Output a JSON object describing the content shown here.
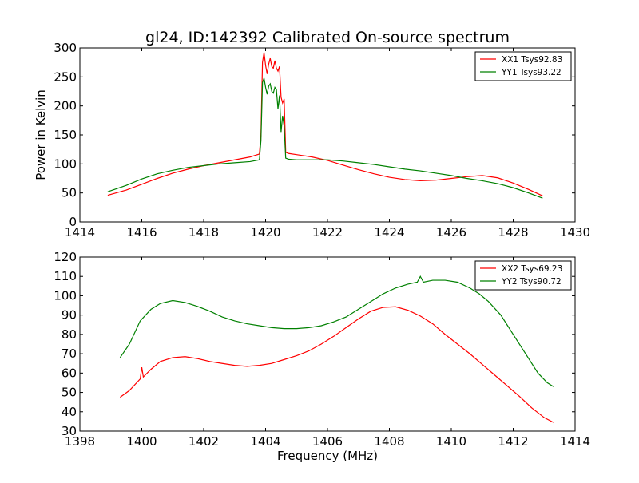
{
  "figure_title": "gl24, ID:142392 Calibrated On-source spectrum",
  "chart_data": [
    {
      "type": "line",
      "title": "gl24, ID:142392 Calibrated On-source spectrum",
      "xlabel": "",
      "ylabel": "Power in Kelvin",
      "xlim": [
        1414,
        1430
      ],
      "ylim": [
        0,
        300
      ],
      "xticks": [
        1414,
        1416,
        1418,
        1420,
        1422,
        1424,
        1426,
        1428,
        1430
      ],
      "yticks": [
        0,
        50,
        100,
        150,
        200,
        250,
        300
      ],
      "legend_position": "top-right",
      "series": [
        {
          "name": "XX1 Tsys92.83",
          "color": "#ff0000",
          "points": [
            [
              1414.9,
              46
            ],
            [
              1415.5,
              55
            ],
            [
              1416,
              65
            ],
            [
              1416.5,
              75
            ],
            [
              1417,
              84
            ],
            [
              1417.5,
              91
            ],
            [
              1418,
              97
            ],
            [
              1418.5,
              102
            ],
            [
              1419,
              107
            ],
            [
              1419.5,
              112
            ],
            [
              1419.8,
              117
            ],
            [
              1419.85,
              150
            ],
            [
              1419.9,
              275
            ],
            [
              1419.95,
              292
            ],
            [
              1420.0,
              270
            ],
            [
              1420.05,
              255
            ],
            [
              1420.1,
              272
            ],
            [
              1420.15,
              282
            ],
            [
              1420.2,
              268
            ],
            [
              1420.25,
              265
            ],
            [
              1420.3,
              278
            ],
            [
              1420.35,
              265
            ],
            [
              1420.4,
              260
            ],
            [
              1420.45,
              268
            ],
            [
              1420.5,
              215
            ],
            [
              1420.55,
              205
            ],
            [
              1420.6,
              212
            ],
            [
              1420.65,
              120
            ],
            [
              1420.75,
              118
            ],
            [
              1421,
              116
            ],
            [
              1421.5,
              112
            ],
            [
              1422,
              106
            ],
            [
              1422.5,
              98
            ],
            [
              1423,
              90
            ],
            [
              1423.5,
              83
            ],
            [
              1424,
              77
            ],
            [
              1424.5,
              73
            ],
            [
              1425,
              71
            ],
            [
              1425.5,
              72
            ],
            [
              1426,
              75
            ],
            [
              1426.5,
              78
            ],
            [
              1427,
              80
            ],
            [
              1427.5,
              76
            ],
            [
              1428,
              67
            ],
            [
              1428.5,
              56
            ],
            [
              1428.95,
              45
            ]
          ]
        },
        {
          "name": "YY1 Tsys93.22",
          "color": "#008000",
          "points": [
            [
              1414.9,
              52
            ],
            [
              1415.5,
              63
            ],
            [
              1416,
              74
            ],
            [
              1416.5,
              83
            ],
            [
              1417,
              89
            ],
            [
              1417.5,
              94
            ],
            [
              1418,
              97
            ],
            [
              1418.5,
              100
            ],
            [
              1419,
              102
            ],
            [
              1419.5,
              104
            ],
            [
              1419.8,
              107
            ],
            [
              1419.85,
              140
            ],
            [
              1419.9,
              240
            ],
            [
              1419.95,
              248
            ],
            [
              1420.0,
              232
            ],
            [
              1420.05,
              220
            ],
            [
              1420.1,
              234
            ],
            [
              1420.15,
              238
            ],
            [
              1420.2,
              225
            ],
            [
              1420.25,
              222
            ],
            [
              1420.3,
              232
            ],
            [
              1420.35,
              228
            ],
            [
              1420.4,
              195
            ],
            [
              1420.45,
              218
            ],
            [
              1420.5,
              155
            ],
            [
              1420.55,
              183
            ],
            [
              1420.6,
              165
            ],
            [
              1420.65,
              110
            ],
            [
              1420.75,
              108
            ],
            [
              1421,
              107
            ],
            [
              1421.5,
              107
            ],
            [
              1422,
              107
            ],
            [
              1422.5,
              105
            ],
            [
              1423,
              102
            ],
            [
              1423.5,
              99
            ],
            [
              1424,
              95
            ],
            [
              1424.5,
              91
            ],
            [
              1425,
              88
            ],
            [
              1425.5,
              84
            ],
            [
              1426,
              80
            ],
            [
              1426.5,
              75
            ],
            [
              1427,
              71
            ],
            [
              1427.5,
              66
            ],
            [
              1428,
              59
            ],
            [
              1428.5,
              50
            ],
            [
              1428.95,
              41
            ]
          ]
        }
      ]
    },
    {
      "type": "line",
      "title": "",
      "xlabel": "Frequency (MHz)",
      "ylabel": "",
      "xlim": [
        1398,
        1414
      ],
      "ylim": [
        30,
        120
      ],
      "xticks": [
        1398,
        1400,
        1402,
        1404,
        1406,
        1408,
        1410,
        1412,
        1414
      ],
      "yticks": [
        30,
        40,
        50,
        60,
        70,
        80,
        90,
        100,
        110,
        120
      ],
      "legend_position": "top-right",
      "series": [
        {
          "name": "XX2 Tsys69.23",
          "color": "#ff0000",
          "points": [
            [
              1399.3,
              47.5
            ],
            [
              1399.6,
              51
            ],
            [
              1399.95,
              57
            ],
            [
              1400,
              63
            ],
            [
              1400.05,
              58
            ],
            [
              1400.3,
              62
            ],
            [
              1400.6,
              66
            ],
            [
              1401,
              68
            ],
            [
              1401.4,
              68.5
            ],
            [
              1401.8,
              67.5
            ],
            [
              1402.2,
              66
            ],
            [
              1402.6,
              65
            ],
            [
              1403,
              64
            ],
            [
              1403.4,
              63.5
            ],
            [
              1403.8,
              64
            ],
            [
              1404.2,
              65
            ],
            [
              1404.6,
              67
            ],
            [
              1405,
              69
            ],
            [
              1405.4,
              71.5
            ],
            [
              1405.8,
              75
            ],
            [
              1406.2,
              79
            ],
            [
              1406.6,
              83.5
            ],
            [
              1407,
              88
            ],
            [
              1407.4,
              92
            ],
            [
              1407.8,
              94
            ],
            [
              1408.2,
              94.3
            ],
            [
              1408.6,
              92.5
            ],
            [
              1409,
              89.5
            ],
            [
              1409.4,
              85.5
            ],
            [
              1409.8,
              80
            ],
            [
              1410.2,
              75
            ],
            [
              1410.6,
              70
            ],
            [
              1411,
              64.5
            ],
            [
              1411.4,
              59
            ],
            [
              1411.8,
              53.5
            ],
            [
              1412.2,
              48
            ],
            [
              1412.6,
              42
            ],
            [
              1413,
              37
            ],
            [
              1413.3,
              34.5
            ]
          ]
        },
        {
          "name": "YY2 Tsys90.72",
          "color": "#008000",
          "points": [
            [
              1399.3,
              68
            ],
            [
              1399.6,
              75
            ],
            [
              1399.95,
              87
            ],
            [
              1400.3,
              93
            ],
            [
              1400.6,
              96
            ],
            [
              1401,
              97.5
            ],
            [
              1401.4,
              96.5
            ],
            [
              1401.8,
              94.5
            ],
            [
              1402.2,
              92
            ],
            [
              1402.6,
              89
            ],
            [
              1403,
              87
            ],
            [
              1403.4,
              85.5
            ],
            [
              1403.8,
              84.5
            ],
            [
              1404.2,
              83.5
            ],
            [
              1404.6,
              83
            ],
            [
              1405,
              83
            ],
            [
              1405.4,
              83.5
            ],
            [
              1405.8,
              84.5
            ],
            [
              1406.2,
              86.5
            ],
            [
              1406.6,
              89
            ],
            [
              1407,
              93
            ],
            [
              1407.4,
              97
            ],
            [
              1407.8,
              101
            ],
            [
              1408.2,
              104
            ],
            [
              1408.6,
              106
            ],
            [
              1408.9,
              107
            ],
            [
              1409.0,
              110
            ],
            [
              1409.1,
              107
            ],
            [
              1409.4,
              108
            ],
            [
              1409.8,
              108
            ],
            [
              1410.2,
              107
            ],
            [
              1410.6,
              104
            ],
            [
              1410.9,
              101
            ],
            [
              1411.2,
              97
            ],
            [
              1411.6,
              90
            ],
            [
              1412,
              80
            ],
            [
              1412.4,
              70
            ],
            [
              1412.8,
              60
            ],
            [
              1413.1,
              55
            ],
            [
              1413.3,
              53
            ]
          ]
        }
      ]
    }
  ]
}
